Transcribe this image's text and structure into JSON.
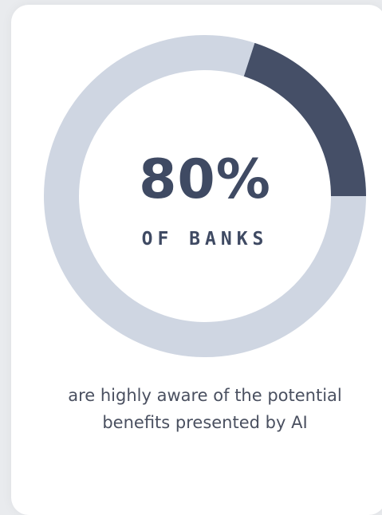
{
  "chart_data": {
    "type": "pie",
    "value_percent": 80,
    "highlight_percent": 80,
    "center_value_label": "80%",
    "center_sublabel": "OF BANKS",
    "caption": "are highly aware of the potential benefits presented by AI"
  },
  "colors": {
    "track": "#cfd6e2",
    "highlight": "#454f67",
    "text": "#3f4a63"
  }
}
